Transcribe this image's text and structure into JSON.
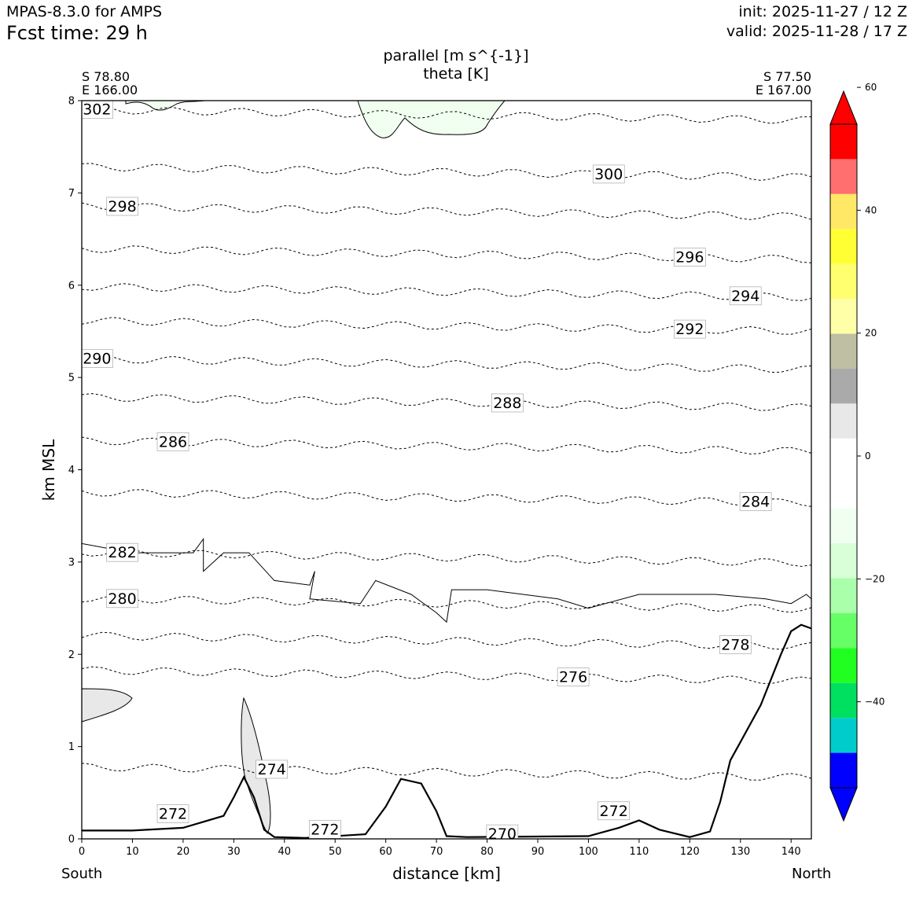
{
  "header": {
    "model": "MPAS-8.3.0 for AMPS",
    "fcst_time": "Fcst time:   29 h",
    "init": "init: 2025-11-27 / 12 Z",
    "valid": "valid: 2025-11-28 / 17 Z"
  },
  "chart_data": {
    "type": "cross-section",
    "title_lines": [
      "parallel [m s^{-1}]",
      "theta [K]"
    ],
    "xlabel": "distance [km]",
    "ylabel": "km MSL",
    "xlim": [
      0,
      144
    ],
    "ylim": [
      0,
      8
    ],
    "x_ticks": [
      0,
      10,
      20,
      30,
      40,
      50,
      60,
      70,
      80,
      90,
      100,
      110,
      120,
      130,
      140
    ],
    "y_ticks": [
      0,
      1,
      2,
      3,
      4,
      5,
      6,
      7,
      8
    ],
    "endpoints": {
      "left": {
        "lat": "S 78.80",
        "lon": "E 166.00",
        "label": "South"
      },
      "right": {
        "lat": "S 77.50",
        "lon": "E 167.00",
        "label": "North"
      }
    },
    "theta_contours": [
      {
        "label": "302",
        "x": 3,
        "y": 7.9
      },
      {
        "label": "300",
        "x": 104,
        "y": 7.2
      },
      {
        "label": "298",
        "x": 8,
        "y": 6.85
      },
      {
        "label": "296",
        "x": 120,
        "y": 6.3
      },
      {
        "label": "294",
        "x": 131,
        "y": 5.88
      },
      {
        "label": "292",
        "x": 120,
        "y": 5.52
      },
      {
        "label": "290",
        "x": 3,
        "y": 5.2
      },
      {
        "label": "288",
        "x": 84,
        "y": 4.72
      },
      {
        "label": "286",
        "x": 18,
        "y": 4.3
      },
      {
        "label": "284",
        "x": 133,
        "y": 3.65
      },
      {
        "label": "282",
        "x": 8,
        "y": 3.1
      },
      {
        "label": "280",
        "x": 8,
        "y": 2.6
      },
      {
        "label": "278",
        "x": 129,
        "y": 2.1
      },
      {
        "label": "276",
        "x": 97,
        "y": 1.75
      },
      {
        "label": "274",
        "x": 37.5,
        "y": 0.75
      },
      {
        "label": "272",
        "x": 18,
        "y": 0.27
      },
      {
        "label": "272",
        "x": 48,
        "y": 0.1
      },
      {
        "label": "272",
        "x": 105,
        "y": 0.3
      },
      {
        "label": "270",
        "x": 83,
        "y": 0.05
      }
    ],
    "terrain": {
      "x": [
        0,
        10,
        20,
        28,
        30,
        32,
        34,
        36,
        38,
        44,
        56,
        60,
        63,
        67,
        70,
        72,
        76,
        100,
        106,
        110,
        114,
        120,
        124,
        126,
        128,
        130,
        134,
        138,
        140,
        142,
        144
      ],
      "height": [
        0.09,
        0.09,
        0.12,
        0.25,
        0.45,
        0.67,
        0.45,
        0.1,
        0.02,
        0.01,
        0.05,
        0.35,
        0.65,
        0.6,
        0.3,
        0.03,
        0.02,
        0.03,
        0.12,
        0.2,
        0.1,
        0.02,
        0.08,
        0.4,
        0.85,
        1.05,
        1.45,
        2.0,
        2.25,
        2.32,
        2.28
      ]
    },
    "colorbar": {
      "ticks": [
        "60",
        "40",
        "20",
        "0",
        "−20",
        "−40"
      ],
      "tick_values": [
        60,
        40,
        20,
        0,
        -20,
        -40
      ],
      "range": [
        -54,
        54
      ],
      "colors": [
        "#0000ff",
        "#00cccc",
        "#00e060",
        "#20ff20",
        "#66ff66",
        "#aaffaa",
        "#d8ffd8",
        "#f0fff0",
        "#ffffff",
        "#ffffff",
        "#e8e8e8",
        "#aaaaaa",
        "#bfbfa4",
        "#ffffa8",
        "#ffff70",
        "#ffff33",
        "#ffe866",
        "#ff6f6f",
        "#ff0000"
      ],
      "low_extend_color": "#0000ff",
      "high_extend_color": "#ff0000"
    }
  }
}
